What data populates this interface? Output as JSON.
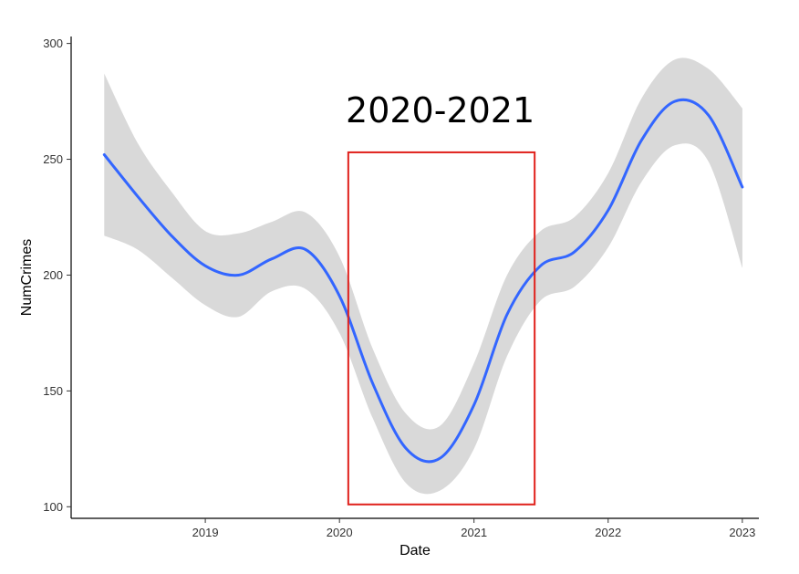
{
  "chart_data": {
    "type": "line",
    "title": "",
    "xlabel": "Date",
    "ylabel": "NumCrimes",
    "x_ticks": [
      "2019",
      "2020",
      "2021",
      "2022",
      "2023"
    ],
    "y_ticks": [
      "100",
      "150",
      "200",
      "250",
      "300"
    ],
    "xlim": [
      "2018-01-01",
      "2023-02-15"
    ],
    "ylim": [
      95,
      303
    ],
    "grid": false,
    "legend": "none",
    "series": [
      {
        "type": "smooth",
        "color": "#3366FF",
        "band_color": "#D9D9D9",
        "x": [
          "2018-04-01",
          "2018-07-01",
          "2018-10-01",
          "2019-01-01",
          "2019-04-01",
          "2019-07-01",
          "2019-10-01",
          "2020-01-01",
          "2020-04-01",
          "2020-07-01",
          "2020-10-01",
          "2021-01-01",
          "2021-04-01",
          "2021-07-01",
          "2021-10-01",
          "2022-01-01",
          "2022-04-01",
          "2022-07-01",
          "2022-10-01",
          "2023-01-01"
        ],
        "y": [
          252,
          234,
          217,
          204,
          200,
          207,
          211,
          191,
          153,
          125,
          121,
          144,
          183,
          204,
          210,
          228,
          258,
          275,
          269,
          238
        ],
        "lower": [
          217,
          211,
          199,
          187,
          182,
          193,
          194,
          175,
          138,
          110,
          107,
          125,
          165,
          189,
          195,
          212,
          240,
          256,
          249,
          203
        ],
        "upper": [
          287,
          257,
          236,
          219,
          218,
          223,
          227,
          208,
          168,
          140,
          135,
          162,
          200,
          219,
          225,
          244,
          276,
          293,
          289,
          272
        ]
      }
    ],
    "annotations": [
      {
        "type": "rect",
        "color": "#E0201B",
        "x": [
          "2020-01-25",
          "2021-06-15"
        ],
        "y": [
          101,
          253
        ]
      },
      {
        "type": "text",
        "label": "2020-2021",
        "x": "2020-10-01",
        "y": 266
      }
    ]
  }
}
